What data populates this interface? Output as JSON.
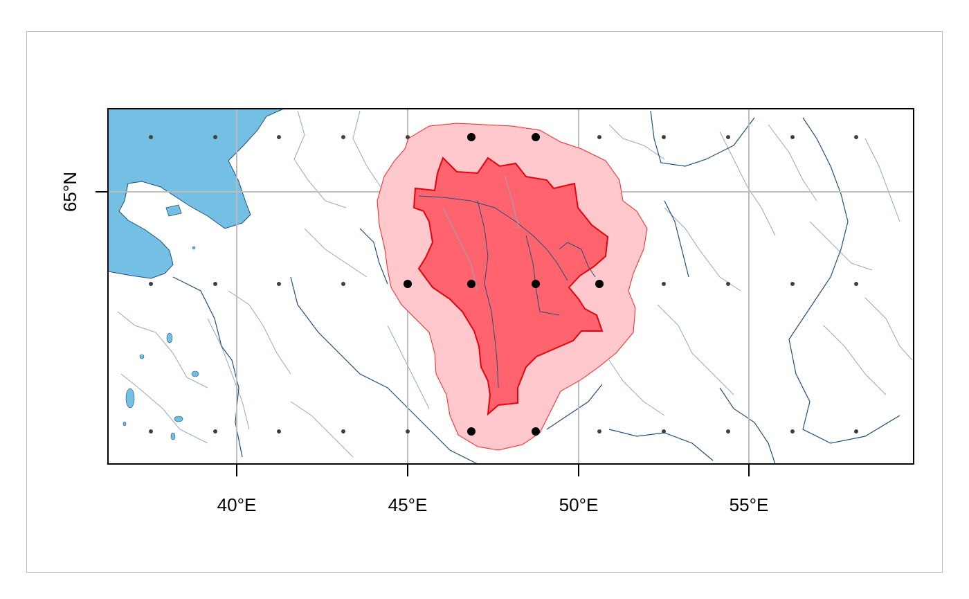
{
  "map": {
    "x_ticks": [
      "40°E",
      "45°E",
      "50°E",
      "55°E"
    ],
    "y_ticks": [
      "65°N"
    ],
    "colors": {
      "water": "#74c0e4",
      "river_major": "#1f4e79",
      "river_minor": "#8fa8c8",
      "basin_fill": "#ff646e",
      "basin_stroke": "#e8000b",
      "buffer_fill": "#ffc8cc",
      "buffer_stroke": "#ff2020",
      "grid": "#bdbdbd",
      "point_small": "#404040",
      "point_large": "#000000"
    }
  }
}
